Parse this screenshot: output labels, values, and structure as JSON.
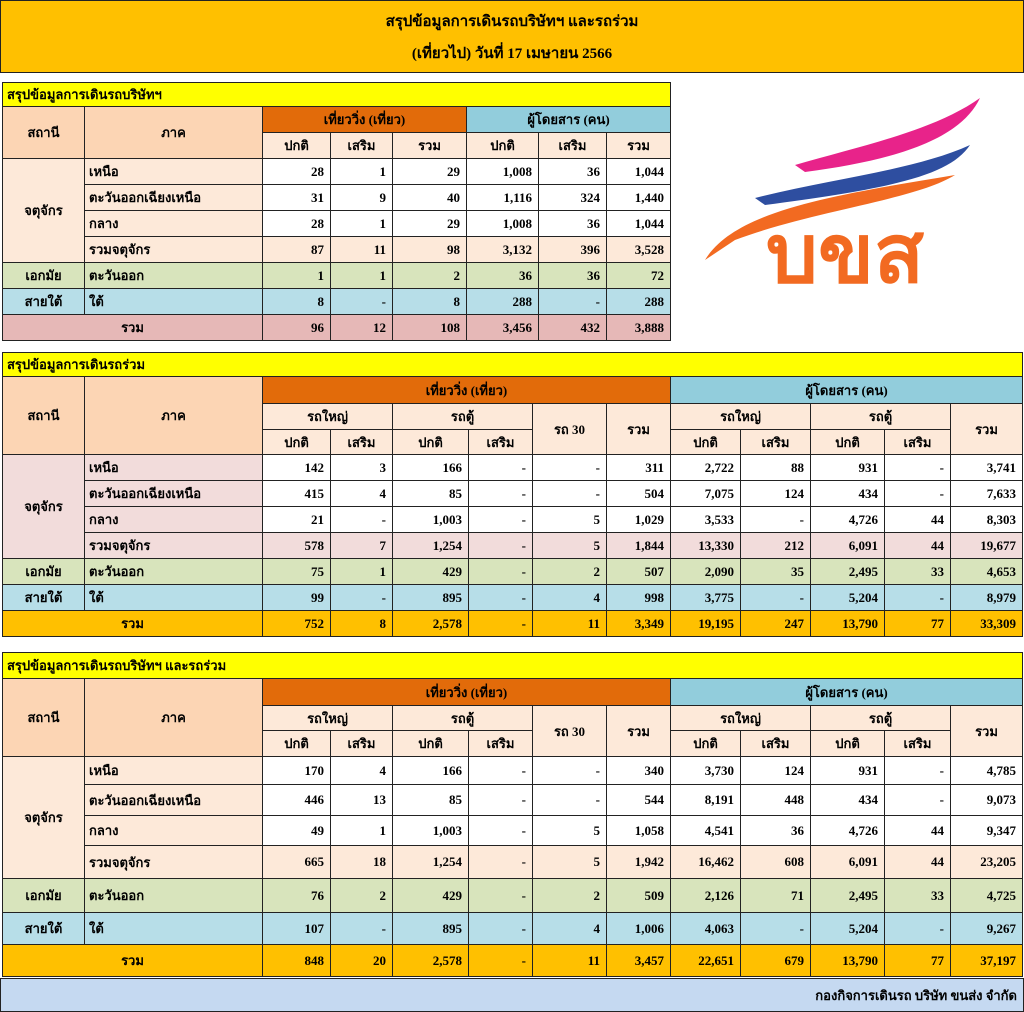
{
  "header": {
    "title": "สรุปข้อมูลการเดินรถบริษัทฯ และรถร่วม",
    "subtitle": "(เที่ยวไป) วันที่ 17 เมษายน  2566"
  },
  "logo": {
    "text": "บขส"
  },
  "company": {
    "title": "สรุปข้อมูลการเดินรถบริษัทฯ",
    "header": {
      "station": "สถานี",
      "region": "ภาค",
      "trips": "เที่ยววิ่ง (เที่ยว)",
      "passengers": "ผู้โดยสาร (คน)",
      "sub": [
        "ปกติ",
        "เสริม",
        "รวม",
        "ปกติ",
        "เสริม",
        "รวม"
      ]
    },
    "groups": [
      {
        "station": "จตุจักร",
        "rows": [
          {
            "region": "เหนือ",
            "cells": [
              "28",
              "1",
              "29",
              "1,008",
              "36",
              "1,044"
            ]
          },
          {
            "region": "ตะวันออกเฉียงเหนือ",
            "cells": [
              "31",
              "9",
              "40",
              "1,116",
              "324",
              "1,440"
            ]
          },
          {
            "region": "กลาง",
            "cells": [
              "28",
              "1",
              "29",
              "1,008",
              "36",
              "1,044"
            ]
          },
          {
            "region": "รวมจตุจักร",
            "cells": [
              "87",
              "11",
              "98",
              "3,132",
              "396",
              "3,528"
            ]
          }
        ]
      },
      {
        "station": "เอกมัย",
        "rows": [
          {
            "region": "ตะวันออก",
            "cells": [
              "1",
              "1",
              "2",
              "36",
              "36",
              "72"
            ]
          }
        ]
      },
      {
        "station": "สายใต้",
        "rows": [
          {
            "region": "ใต้",
            "cells": [
              "8",
              "-",
              "8",
              "288",
              "-",
              "288"
            ]
          }
        ]
      }
    ],
    "total": {
      "label": "รวม",
      "cells": [
        "96",
        "12",
        "108",
        "3,456",
        "432",
        "3,888"
      ]
    }
  },
  "joint": {
    "title": "สรุปข้อมูลการเดินรถร่วม",
    "header": {
      "station": "สถานี",
      "region": "ภาค",
      "trips": "เที่ยววิ่ง (เที่ยว)",
      "trips_groups": [
        "รถใหญ่",
        "รถตู้"
      ],
      "bus30": "รถ 30",
      "trips_total": "รวม",
      "passengers": "ผู้โดยสาร (คน)",
      "passenger_groups": [
        "รถใหญ่",
        "รถตู้"
      ],
      "passenger_total": "รวม",
      "sub": [
        "ปกติ",
        "เสริม",
        "ปกติ",
        "เสริม",
        "ปกติ",
        "เสริม",
        "ปกติ",
        "เสริม"
      ]
    },
    "groups": [
      {
        "station": "จตุจักร",
        "rows": [
          {
            "region": "เหนือ",
            "cells": [
              "142",
              "3",
              "166",
              "-",
              "-",
              "311",
              "2,722",
              "88",
              "931",
              "-",
              "3,741"
            ]
          },
          {
            "region": "ตะวันออกเฉียงเหนือ",
            "cells": [
              "415",
              "4",
              "85",
              "-",
              "-",
              "504",
              "7,075",
              "124",
              "434",
              "-",
              "7,633"
            ]
          },
          {
            "region": "กลาง",
            "cells": [
              "21",
              "-",
              "1,003",
              "-",
              "5",
              "1,029",
              "3,533",
              "-",
              "4,726",
              "44",
              "8,303"
            ]
          },
          {
            "region": "รวมจตุจักร",
            "cells": [
              "578",
              "7",
              "1,254",
              "-",
              "5",
              "1,844",
              "13,330",
              "212",
              "6,091",
              "44",
              "19,677"
            ]
          }
        ]
      },
      {
        "station": "เอกมัย",
        "rows": [
          {
            "region": "ตะวันออก",
            "cells": [
              "75",
              "1",
              "429",
              "-",
              "2",
              "507",
              "2,090",
              "35",
              "2,495",
              "33",
              "4,653"
            ]
          }
        ]
      },
      {
        "station": "สายใต้",
        "rows": [
          {
            "region": "ใต้",
            "cells": [
              "99",
              "-",
              "895",
              "-",
              "4",
              "998",
              "3,775",
              "-",
              "5,204",
              "-",
              "8,979"
            ]
          }
        ]
      }
    ],
    "total": {
      "label": "รวม",
      "cells": [
        "752",
        "8",
        "2,578",
        "-",
        "11",
        "3,349",
        "19,195",
        "247",
        "13,790",
        "77",
        "33,309"
      ]
    }
  },
  "combined": {
    "title": "สรุปข้อมูลการเดินรถบริษัทฯ และรถร่วม",
    "header": {
      "station": "สถานี",
      "region": "ภาค",
      "trips": "เที่ยววิ่ง (เที่ยว)",
      "trips_groups": [
        "รถใหญ่",
        "รถตู้"
      ],
      "bus30": "รถ 30",
      "trips_total": "รวม",
      "passengers": "ผู้โดยสาร (คน)",
      "passenger_groups": [
        "รถใหญ่",
        "รถตู้"
      ],
      "passenger_total": "รวม",
      "sub": [
        "ปกติ",
        "เสริม",
        "ปกติ",
        "เสริม",
        "ปกติ",
        "เสริม",
        "ปกติ",
        "เสริม"
      ]
    },
    "groups": [
      {
        "station": "จตุจักร",
        "rows": [
          {
            "region": "เหนือ",
            "cells": [
              "170",
              "4",
              "166",
              "-",
              "-",
              "340",
              "3,730",
              "124",
              "931",
              "-",
              "4,785"
            ]
          },
          {
            "region": "ตะวันออกเฉียงเหนือ",
            "cells": [
              "446",
              "13",
              "85",
              "-",
              "-",
              "544",
              "8,191",
              "448",
              "434",
              "-",
              "9,073"
            ]
          },
          {
            "region": "กลาง",
            "cells": [
              "49",
              "1",
              "1,003",
              "-",
              "5",
              "1,058",
              "4,541",
              "36",
              "4,726",
              "44",
              "9,347"
            ]
          },
          {
            "region": "รวมจตุจักร",
            "cells": [
              "665",
              "18",
              "1,254",
              "-",
              "5",
              "1,942",
              "16,462",
              "608",
              "6,091",
              "44",
              "23,205"
            ]
          }
        ]
      },
      {
        "station": "เอกมัย",
        "rows": [
          {
            "region": "ตะวันออก",
            "cells": [
              "76",
              "2",
              "429",
              "-",
              "2",
              "509",
              "2,126",
              "71",
              "2,495",
              "33",
              "4,725"
            ]
          }
        ]
      },
      {
        "station": "สายใต้",
        "rows": [
          {
            "region": "ใต้",
            "cells": [
              "107",
              "-",
              "895",
              "-",
              "4",
              "1,006",
              "4,063",
              "-",
              "5,204",
              "-",
              "9,267"
            ]
          }
        ]
      }
    ],
    "total": {
      "label": "รวม",
      "cells": [
        "848",
        "20",
        "2,578",
        "-",
        "11",
        "3,457",
        "22,651",
        "679",
        "13,790",
        "77",
        "37,197"
      ]
    }
  },
  "footer": {
    "text": "กองกิจการเดินรถ บริษัท ขนส่ง จำกัด"
  }
}
